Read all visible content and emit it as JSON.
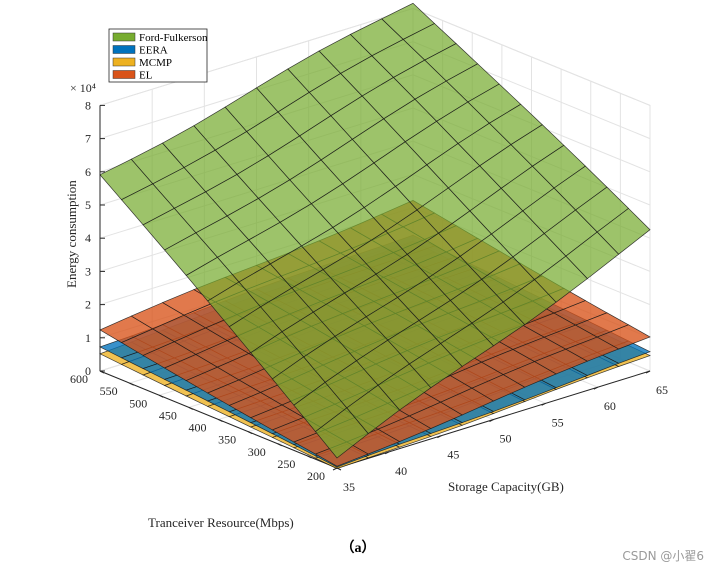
{
  "chart_data": {
    "type": "surface3d",
    "xlabel": "Storage Capacity(GB)",
    "ylabel": "Tranceiver Resource(Mbps)",
    "zlabel": "Energy consumption",
    "z_exponent_label": "× 10⁴",
    "x_ticks": [
      35,
      40,
      45,
      50,
      55,
      60,
      65
    ],
    "y_ticks": [
      200,
      250,
      300,
      350,
      400,
      450,
      500,
      550,
      600
    ],
    "z_ticks": [
      0,
      1,
      2,
      3,
      4,
      5,
      6,
      7,
      8
    ],
    "x_range": [
      35,
      65
    ],
    "y_range": [
      200,
      600
    ],
    "z_range": [
      0,
      8
    ],
    "grid": true,
    "legend_position": "top-left",
    "series": [
      {
        "name": "Ford-Fulkerson",
        "color": "#77AC30",
        "z_corner_x35_y200": 0.3,
        "z_corner_x65_y200": 4.2,
        "z_corner_x35_y600": 5.9,
        "z_corner_x65_y600": 8.2
      },
      {
        "name": "EERA",
        "color": "#0072BD",
        "z_corner_x35_y200": 0.0,
        "z_corner_x65_y200": 0.55,
        "z_corner_x35_y600": 0.75,
        "z_corner_x65_y600": 1.2
      },
      {
        "name": "MCMP",
        "color": "#EDB120",
        "z_corner_x35_y200": -0.05,
        "z_corner_x65_y200": 0.45,
        "z_corner_x35_y600": 0.55,
        "z_corner_x65_y600": 1.0
      },
      {
        "name": "EL",
        "color": "#D95319",
        "z_corner_x35_y200": 0.05,
        "z_corner_x65_y200": 1.05,
        "z_corner_x35_y600": 1.25,
        "z_corner_x65_y600": 2.2
      }
    ]
  },
  "caption": "（a）",
  "watermark": "CSDN @小翟6"
}
